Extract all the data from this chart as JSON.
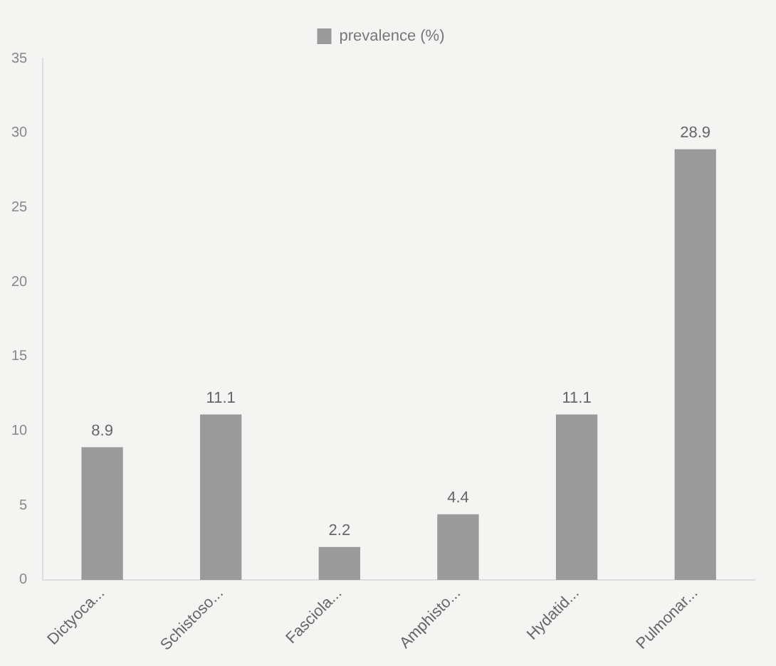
{
  "chart_data": {
    "type": "bar",
    "categories": [
      "Dictyoca...",
      "Schistoso...",
      "Fasciola...",
      "Amphisto...",
      "Hydatid...",
      "Pulmonar..."
    ],
    "series": [
      {
        "name": "prevalence (%)",
        "color": "#9a9a9a",
        "values": [
          8.9,
          11.1,
          2.2,
          4.4,
          11.1,
          28.9
        ]
      }
    ],
    "ylim": [
      0,
      35
    ],
    "yticks": [
      0,
      5,
      10,
      15,
      20,
      25,
      30,
      35
    ],
    "grid": false,
    "legend": "top",
    "data_labels": true
  }
}
